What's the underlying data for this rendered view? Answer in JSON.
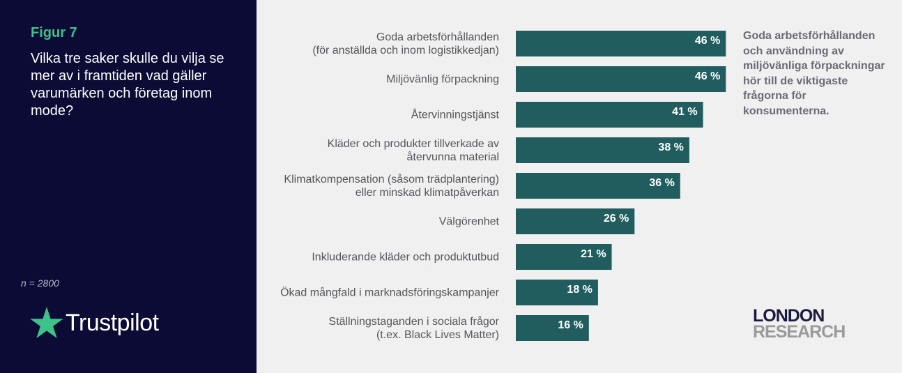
{
  "left_panel": {
    "figure_label": "Figur 7",
    "question": "Vilka tre saker skulle du vilja se mer av i framtiden vad gäller varumärken och företag inom mode?",
    "sample_size": "n = 2800",
    "brand_name": "Trustpilot"
  },
  "note": "Goda arbetsförhållanden och användning av miljövänliga förpackningar hör till de viktigaste frågorna för konsumenterna.",
  "logo": {
    "line1": "LONDON",
    "line2": "RESEARCH"
  },
  "colors": {
    "bar": "#215d5f",
    "panel": "#0c0b36",
    "accent": "#3fc28a"
  },
  "chart_data": {
    "type": "bar",
    "orientation": "horizontal",
    "categories": [
      [
        "Goda arbetsförhållanden",
        "(för anställda och inom logistikkedjan)"
      ],
      [
        "Miljövänlig förpackning"
      ],
      [
        "Återvinningstjänst"
      ],
      [
        "Kläder och produkter tillverkade av",
        "återvunna material"
      ],
      [
        "Klimatkompensation (såsom trädplantering)",
        "eller minskad klimatpåverkan"
      ],
      [
        "Välgörenhet"
      ],
      [
        "Inkluderande kläder och produktutbud"
      ],
      [
        "Ökad mångfald i marknadsföringskampanjer"
      ],
      [
        "Ställningstaganden i sociala frågor",
        "(t.ex. Black Lives Matter)"
      ]
    ],
    "values": [
      46,
      46,
      41,
      38,
      36,
      26,
      21,
      18,
      16
    ],
    "value_labels": [
      "46 %",
      "46 %",
      "41 %",
      "38 %",
      "36 %",
      "26 %",
      "21 %",
      "18 %",
      "16 %"
    ],
    "unit": "%",
    "grid": false,
    "legend": "none"
  }
}
